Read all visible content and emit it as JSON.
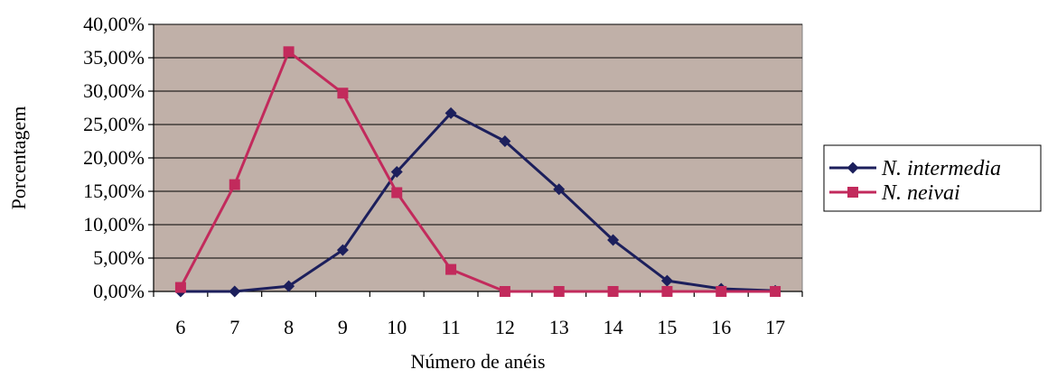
{
  "chart_data": {
    "type": "line",
    "xlabel": "Número de anéis",
    "ylabel": "Porcentagem",
    "x": [
      6,
      7,
      8,
      9,
      10,
      11,
      12,
      13,
      14,
      15,
      16,
      17
    ],
    "x_tick_labels": [
      "6",
      "7",
      "8",
      "9",
      "10",
      "11",
      "12",
      "13",
      "14",
      "15",
      "16",
      "17"
    ],
    "y_tick_labels": [
      "0,00%",
      "5,00%",
      "10,00%",
      "15,00%",
      "20,00%",
      "25,00%",
      "30,00%",
      "35,00%",
      "40,00%"
    ],
    "ylim": [
      0,
      40
    ],
    "y_unit": "%",
    "grid": "horizontal",
    "plot_background": "#c0b0a8",
    "legend_position": "right",
    "series": [
      {
        "name": "N. intermedia",
        "color": "#1c1f5c",
        "marker": "diamond",
        "values": [
          0.0,
          0.0,
          0.8,
          6.2,
          17.9,
          26.7,
          22.5,
          15.3,
          7.7,
          1.6,
          0.4,
          0.1
        ]
      },
      {
        "name": "N. neivai",
        "color": "#c22a5c",
        "marker": "square",
        "values": [
          0.6,
          16.0,
          35.9,
          29.7,
          14.8,
          3.3,
          0.0,
          0.0,
          0.0,
          0.0,
          0.0,
          0.0
        ]
      }
    ]
  }
}
